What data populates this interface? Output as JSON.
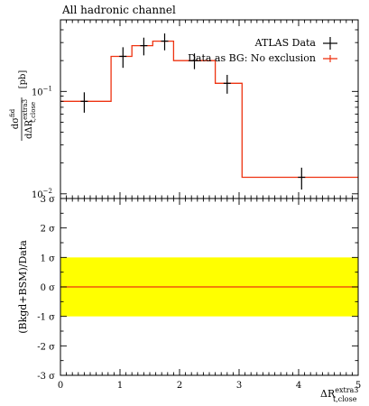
{
  "chart_data": [
    {
      "type": "line",
      "panel": "main",
      "title": "All hadronic channel",
      "ylabel": "dσ^fid / dΔR^extra3_t,close [pb]",
      "ylabel_num": "dσ",
      "ylabel_num_sup": "fid",
      "ylabel_den": "dΔR",
      "ylabel_den_sup": "extra3",
      "ylabel_den_sub": "t,close",
      "ylabel_unit": "[pb]",
      "yscale": "log",
      "xlim": [
        0,
        5
      ],
      "ylim": [
        0.009,
        0.5
      ],
      "ytick_labels": [
        {
          "value": 0.1,
          "base": "10",
          "exp": "−1"
        },
        {
          "value": 0.01,
          "base": "10",
          "exp": "−2"
        }
      ],
      "legend_position": "top-right",
      "series": [
        {
          "name": "ATLAS Data",
          "color": "#000000",
          "style": "points-with-errors",
          "x": [
            0.4,
            1.05,
            1.4,
            1.75,
            2.25,
            2.8,
            4.05
          ],
          "y": [
            0.08,
            0.22,
            0.28,
            0.31,
            0.2,
            0.12,
            0.0145
          ],
          "y_err": [
            0.018,
            0.05,
            0.055,
            0.058,
            0.035,
            0.025,
            0.0035
          ]
        },
        {
          "name": "Data as BG: No exclusion",
          "color": "#ee3311",
          "style": "histogram",
          "bin_edges": [
            0,
            0.85,
            1.2,
            1.55,
            1.9,
            2.6,
            3.05,
            5
          ],
          "values": [
            0.08,
            0.22,
            0.28,
            0.31,
            0.2,
            0.12,
            0.0145
          ]
        }
      ]
    },
    {
      "type": "line",
      "panel": "ratio",
      "ylabel": "(Bkgd+BSM)/Data",
      "xlabel": "ΔR^extra3_t,close",
      "xlabel_main": "ΔR",
      "xlabel_sup": "extra3",
      "xlabel_sub": "t,close",
      "xlim": [
        0,
        5
      ],
      "ylim": [
        -3,
        3
      ],
      "xtick_labels": [
        "0",
        "1",
        "2",
        "3",
        "4",
        "5"
      ],
      "ytick_labels": [
        "3 σ",
        "2 σ",
        "1 σ",
        "0 σ",
        "-1 σ",
        "-2 σ",
        "-3 σ"
      ],
      "band": {
        "lower": -1,
        "upper": 1,
        "color": "#ffff00"
      },
      "series": [
        {
          "name": "",
          "color": "#ee3311",
          "x": [
            0,
            5
          ],
          "y": [
            0,
            0
          ]
        }
      ]
    }
  ]
}
